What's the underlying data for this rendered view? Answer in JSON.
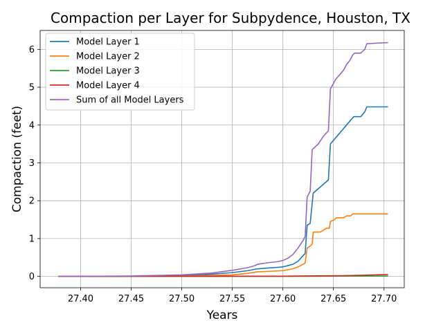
{
  "chart_data": {
    "type": "line",
    "title": "Compaction per Layer for Subpydence, Houston, TX",
    "xlabel": "Years",
    "ylabel": "Compaction (feet)",
    "xlim": [
      27.36,
      27.72
    ],
    "ylim": [
      -0.3,
      6.5
    ],
    "xticks": [
      27.4,
      27.45,
      27.5,
      27.55,
      27.6,
      27.65,
      27.7
    ],
    "xtick_labels": [
      "27.40",
      "27.45",
      "27.50",
      "27.55",
      "27.60",
      "27.65",
      "27.70"
    ],
    "yticks": [
      0,
      1,
      2,
      3,
      4,
      5,
      6
    ],
    "ytick_labels": [
      "0",
      "1",
      "2",
      "3",
      "4",
      "5",
      "6"
    ],
    "grid": true,
    "legend_position": "top-left",
    "series": [
      {
        "name": "Model Layer 1",
        "color": "#1f77b4",
        "points": [
          [
            27.378,
            0.0
          ],
          [
            27.45,
            0.005
          ],
          [
            27.5,
            0.02
          ],
          [
            27.53,
            0.06
          ],
          [
            27.55,
            0.1
          ],
          [
            27.565,
            0.15
          ],
          [
            27.575,
            0.2
          ],
          [
            27.585,
            0.22
          ],
          [
            27.6,
            0.25
          ],
          [
            27.61,
            0.32
          ],
          [
            27.615,
            0.4
          ],
          [
            27.62,
            0.55
          ],
          [
            27.622,
            0.6
          ],
          [
            27.624,
            1.35
          ],
          [
            27.627,
            1.4
          ],
          [
            27.63,
            2.2
          ],
          [
            27.645,
            2.55
          ],
          [
            27.647,
            3.5
          ],
          [
            27.655,
            3.75
          ],
          [
            27.67,
            4.22
          ],
          [
            27.677,
            4.22
          ],
          [
            27.681,
            4.35
          ],
          [
            27.683,
            4.48
          ],
          [
            27.704,
            4.48
          ]
        ]
      },
      {
        "name": "Model Layer 2",
        "color": "#ff7f0e",
        "points": [
          [
            27.378,
            0.0
          ],
          [
            27.5,
            0.01
          ],
          [
            27.55,
            0.04
          ],
          [
            27.565,
            0.08
          ],
          [
            27.575,
            0.12
          ],
          [
            27.6,
            0.15
          ],
          [
            27.61,
            0.2
          ],
          [
            27.615,
            0.25
          ],
          [
            27.622,
            0.35
          ],
          [
            27.624,
            0.75
          ],
          [
            27.627,
            0.8
          ],
          [
            27.629,
            0.85
          ],
          [
            27.63,
            1.17
          ],
          [
            27.637,
            1.17
          ],
          [
            27.643,
            1.27
          ],
          [
            27.646,
            1.27
          ],
          [
            27.647,
            1.45
          ],
          [
            27.651,
            1.5
          ],
          [
            27.653,
            1.55
          ],
          [
            27.66,
            1.55
          ],
          [
            27.663,
            1.6
          ],
          [
            27.667,
            1.6
          ],
          [
            27.669,
            1.65
          ],
          [
            27.704,
            1.65
          ]
        ]
      },
      {
        "name": "Model Layer 3",
        "color": "#2ca02c",
        "points": [
          [
            27.378,
            0.0
          ],
          [
            27.6,
            0.0
          ],
          [
            27.65,
            0.005
          ],
          [
            27.704,
            0.01
          ]
        ]
      },
      {
        "name": "Model Layer 4",
        "color": "#d62728",
        "points": [
          [
            27.378,
            0.0
          ],
          [
            27.6,
            0.005
          ],
          [
            27.63,
            0.015
          ],
          [
            27.66,
            0.02
          ],
          [
            27.68,
            0.03
          ],
          [
            27.704,
            0.05
          ]
        ]
      },
      {
        "name": "Sum of all Model Layers",
        "color": "#9467bd",
        "points": [
          [
            27.378,
            0.0
          ],
          [
            27.45,
            0.01
          ],
          [
            27.5,
            0.04
          ],
          [
            27.53,
            0.09
          ],
          [
            27.55,
            0.16
          ],
          [
            27.565,
            0.23
          ],
          [
            27.572,
            0.28
          ],
          [
            27.575,
            0.32
          ],
          [
            27.585,
            0.36
          ],
          [
            27.595,
            0.39
          ],
          [
            27.6,
            0.42
          ],
          [
            27.605,
            0.48
          ],
          [
            27.61,
            0.58
          ],
          [
            27.615,
            0.75
          ],
          [
            27.62,
            0.95
          ],
          [
            27.622,
            1.05
          ],
          [
            27.624,
            2.1
          ],
          [
            27.627,
            2.25
          ],
          [
            27.629,
            3.35
          ],
          [
            27.635,
            3.5
          ],
          [
            27.64,
            3.7
          ],
          [
            27.645,
            3.85
          ],
          [
            27.647,
            4.95
          ],
          [
            27.652,
            5.2
          ],
          [
            27.66,
            5.45
          ],
          [
            27.663,
            5.6
          ],
          [
            27.666,
            5.7
          ],
          [
            27.669,
            5.85
          ],
          [
            27.671,
            5.9
          ],
          [
            27.677,
            5.9
          ],
          [
            27.681,
            6.0
          ],
          [
            27.683,
            6.15
          ],
          [
            27.704,
            6.18
          ]
        ]
      }
    ]
  }
}
